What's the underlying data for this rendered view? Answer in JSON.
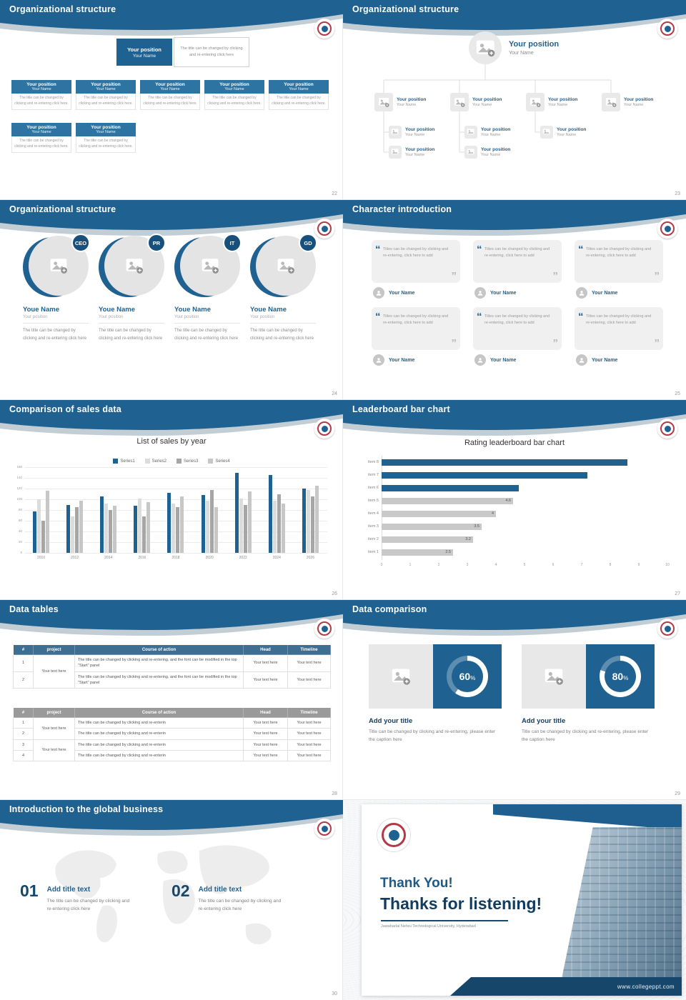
{
  "theme": {
    "accent": "#1f6190",
    "accent_dark": "#17486b",
    "grey_bar": "#c9c9c9"
  },
  "icons": {
    "open_quote": "“",
    "close_quote": "”"
  },
  "chart_data": [
    {
      "type": "bar",
      "title": "List of sales by year",
      "categories": [
        "2010",
        "2012",
        "2014",
        "2016",
        "2018",
        "2020",
        "2022",
        "2024",
        "2026"
      ],
      "series": [
        {
          "name": "Series1",
          "color": "#1f6190",
          "values": [
            78,
            90,
            106,
            88,
            112,
            108,
            150,
            145,
            120
          ]
        },
        {
          "name": "Series2",
          "color": "#dcdcdc",
          "values": [
            100,
            68,
            92,
            102,
            92,
            98,
            102,
            98,
            118
          ]
        },
        {
          "name": "Series3",
          "color": "#a6a6a6",
          "values": [
            60,
            86,
            80,
            68,
            86,
            118,
            90,
            110,
            105
          ]
        },
        {
          "name": "Series4",
          "color": "#c7c7c7",
          "values": [
            116,
            98,
            88,
            95,
            106,
            86,
            115,
            92,
            125
          ]
        }
      ],
      "xlabel": "",
      "ylabel": "",
      "ylim": [
        0,
        160
      ],
      "yticks": [
        0,
        20,
        40,
        60,
        80,
        100,
        120,
        140,
        160
      ],
      "legend_position": "top",
      "grid": true
    },
    {
      "type": "horizontal-bar",
      "title": "Rating leaderboard bar chart",
      "categories": [
        "item 1",
        "item 2",
        "item 3",
        "item 4",
        "item 5",
        "item 6",
        "item 7",
        "item 8"
      ],
      "values": [
        2.5,
        3.2,
        3.5,
        4,
        4.6,
        4.8,
        7.2,
        8.6
      ],
      "value_labels": [
        "2.5",
        "3.2",
        "3.5",
        "4",
        "4.6",
        "",
        "",
        ""
      ],
      "bar_colors": [
        "#c9c9c9",
        "#c9c9c9",
        "#c9c9c9",
        "#c9c9c9",
        "#c9c9c9",
        "#1f6190",
        "#1f6190",
        "#1f6190"
      ],
      "xlim": [
        0,
        10
      ],
      "xticks": [
        0,
        1,
        2,
        3,
        4,
        5,
        6,
        7,
        8,
        9,
        10
      ],
      "grid": false
    }
  ],
  "slides": {
    "s22": {
      "title": "Organizational structure",
      "page": "22",
      "root": {
        "position": "Your position",
        "name": "Your Name"
      },
      "root_note": "The title can be changed by clicking and re-entering click here",
      "row1": [
        {
          "position": "Your position",
          "name": "Your Name",
          "note": "The title can be changed by clicking and re-entering click here."
        },
        {
          "position": "Your position",
          "name": "Your Name",
          "note": "The title can be changed by clicking and re-entering click here."
        },
        {
          "position": "Your position",
          "name": "Your Name",
          "note": "The title can be changed by clicking and re-entering click here."
        },
        {
          "position": "Your position",
          "name": "Your Name",
          "note": "The title can be changed by clicking and re-entering click here."
        },
        {
          "position": "Your position",
          "name": "Your Name",
          "note": "The title can be changed by clicking and re-entering click here."
        }
      ],
      "row2": [
        {
          "position": "Your position",
          "name": "Your Name",
          "note": "The title can be changed by clicking and re-entering click here."
        },
        {
          "position": "Your position",
          "name": "Your Name",
          "note": "The title can be changed by clicking and re-entering click here."
        }
      ]
    },
    "s23": {
      "title": "Organizational structure",
      "page": "23",
      "root": {
        "position": "Your position",
        "name": "Your Name"
      },
      "level1": [
        {
          "position": "Your position",
          "name": "Your Name"
        },
        {
          "position": "Your position",
          "name": "Your Name"
        },
        {
          "position": "Your position",
          "name": "Your Name"
        },
        {
          "position": "Your position",
          "name": "Your Name"
        }
      ],
      "level2": [
        {
          "position": "Your position",
          "name": "Your Name"
        },
        {
          "position": "Your position",
          "name": "Your Name"
        },
        {
          "position": "Your position",
          "name": "Your Name"
        }
      ],
      "level3": [
        {
          "position": "Your position",
          "name": "Your Name"
        },
        {
          "position": "Your position",
          "name": "Your Name"
        }
      ]
    },
    "s24": {
      "title": "Organizational structure",
      "page": "24",
      "members": [
        {
          "badge": "CEO",
          "name": "Youe Name",
          "position": "Your position",
          "desc": "The title can be changed by clicking and re-entering click here"
        },
        {
          "badge": "PR",
          "name": "Youe Name",
          "position": "Your position",
          "desc": "The title can be changed by clicking and re-entering click here"
        },
        {
          "badge": "IT",
          "name": "Youe Name",
          "position": "Your position",
          "desc": "The title can be changed by clicking and re-entering click here"
        },
        {
          "badge": "GD",
          "name": "Youe Name",
          "position": "Your position",
          "desc": "The title can be changed by clicking and re-entering click here"
        }
      ]
    },
    "s25": {
      "title": "Character introduction",
      "page": "25",
      "cards": [
        {
          "quote": "Titles can be changed by clicking and re-entering, click here to add",
          "name": "Your Name"
        },
        {
          "quote": "Titles can be changed by clicking and re-entering, click here to add",
          "name": "Your Name"
        },
        {
          "quote": "Titles can be changed by clicking and re-entering, click here to add",
          "name": "Your Name"
        },
        {
          "quote": "Titles can be changed by clicking and re-entering, click here to add",
          "name": "Your Name"
        },
        {
          "quote": "Titles can be changed by clicking and re-entering, click here to add",
          "name": "Your Name"
        },
        {
          "quote": "Titles can be changed by clicking and re-entering, click here to add",
          "name": "Your Name"
        }
      ]
    },
    "s26": {
      "title": "Comparison of sales data",
      "page": "26"
    },
    "s27": {
      "title": "Leaderboard bar chart",
      "page": "27"
    },
    "s28": {
      "title": "Data tables",
      "page": "28",
      "table1": {
        "headers": [
          "#",
          "project",
          "Course of action",
          "Head",
          "Timeline"
        ],
        "rows": [
          {
            "num": "1",
            "project": "Your text here",
            "course": "The title can be changed by clicking and re-entering, and the font can be modified in the top \"Start\" panel",
            "head": "Your text here",
            "timeline": "Your text here"
          },
          {
            "num": "2",
            "course": "The title can be changed by clicking and re-entering, and the font can be modified in the top \"Start\" panel",
            "head": "Your text here",
            "timeline": "Your text here"
          }
        ]
      },
      "table2": {
        "headers": [
          "#",
          "project",
          "Course of action",
          "Head",
          "Timeline"
        ],
        "rows": [
          {
            "num": "1",
            "project": "Your text here",
            "course": "The title can be changed by clicking and re-enterin",
            "head": "Your text here",
            "timeline": "Your text here"
          },
          {
            "num": "2",
            "course": "The title can be changed by clicking and re-enterin",
            "head": "Your text here",
            "timeline": "Your text here"
          },
          {
            "num": "3",
            "project": "Your text here",
            "course": "The title can be changed by clicking and re-enterin",
            "head": "Your text here",
            "timeline": "Your text here"
          },
          {
            "num": "4",
            "course": "The title can be changed by clicking and re-enterin",
            "head": "Your text here",
            "timeline": "Your text here"
          }
        ]
      }
    },
    "s29": {
      "title": "Data comparison",
      "page": "29",
      "items": [
        {
          "percent": 60,
          "label": "60",
          "unit": "%",
          "heading": "Add your title",
          "caption": "Title can be changed by clicking and re-entering, please enter the caption here"
        },
        {
          "percent": 80,
          "label": "80",
          "unit": "%",
          "heading": "Add your title",
          "caption": "Title can be changed by clicking and re-entering, please enter the caption here"
        }
      ]
    },
    "s30": {
      "title": "Introduction to the global business",
      "page": "30",
      "points": [
        {
          "number": "01",
          "title": "Add title text",
          "desc": "The title can be changed by clicking and re-entering click here"
        },
        {
          "number": "02",
          "title": "Add title text",
          "desc": "The title can be changed by clicking and re-entering click here"
        }
      ]
    },
    "thanks": {
      "title_main": "Thank You!",
      "title_sub": "Thanks for listening!",
      "caption": "Jawaharlal Nehru Technological University, Hyderabad",
      "website": "www.collegeppt.com"
    }
  }
}
